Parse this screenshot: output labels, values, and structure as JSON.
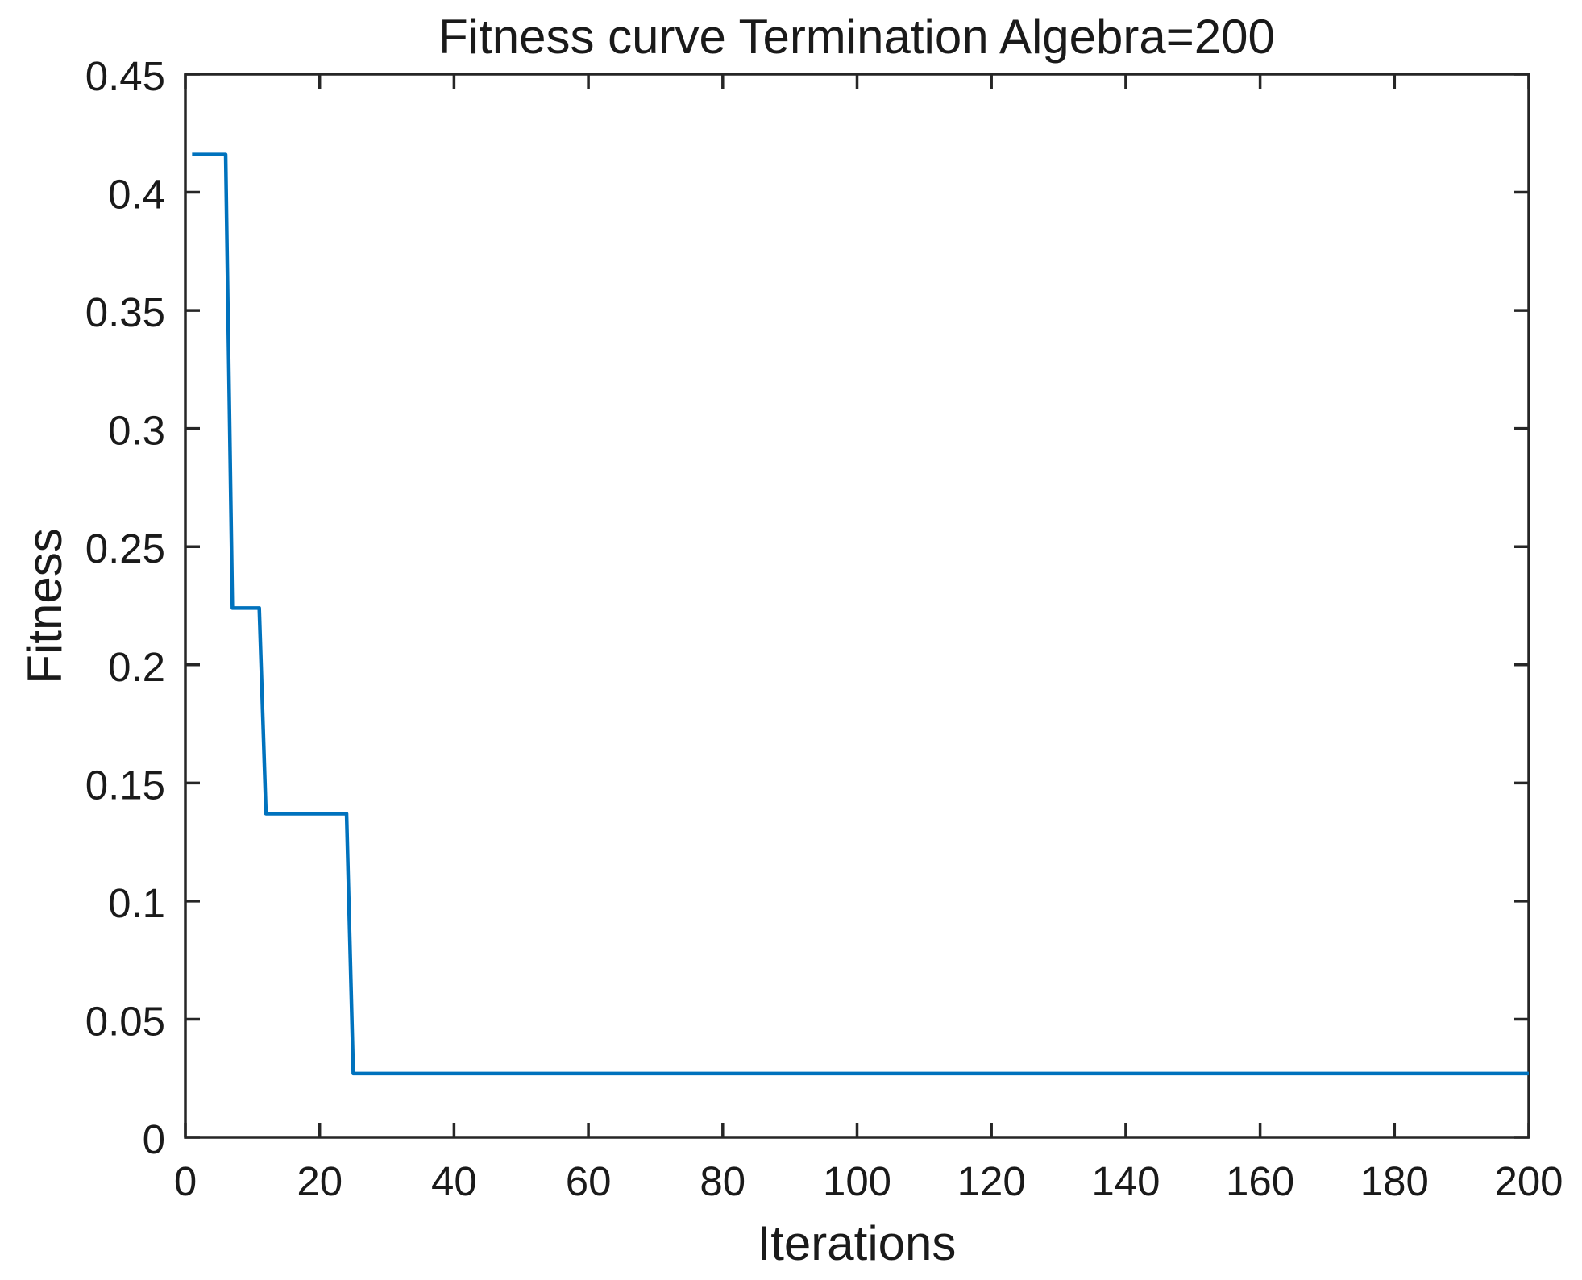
{
  "colors": {
    "line": "#0072BD",
    "axis": "#262626",
    "text": "#1a1a1a",
    "background": "#ffffff"
  },
  "chart_data": {
    "type": "line",
    "title": "Fitness curve Termination Algebra=200",
    "xlabel": "Iterations",
    "ylabel": "Fitness",
    "xlim": [
      0,
      200
    ],
    "ylim": [
      0,
      0.45
    ],
    "xtick_values": [
      0,
      20,
      40,
      60,
      80,
      100,
      120,
      140,
      160,
      180,
      200
    ],
    "xtick_labels": [
      "0",
      "20",
      "40",
      "60",
      "80",
      "100",
      "120",
      "140",
      "160",
      "180",
      "200"
    ],
    "ytick_values": [
      0,
      0.05,
      0.1,
      0.15,
      0.2,
      0.25,
      0.3,
      0.35,
      0.4,
      0.45
    ],
    "ytick_labels": [
      "0",
      "0.05",
      "0.1",
      "0.15",
      "0.2",
      "0.25",
      "0.3",
      "0.35",
      "0.4",
      "0.45"
    ],
    "grid": false,
    "legend_position": "none",
    "box": true,
    "tick_direction": "in",
    "series": [
      {
        "name": "fitness",
        "color": "#0072BD",
        "x": [
          1,
          6,
          7,
          11,
          12,
          24,
          25,
          200
        ],
        "y": [
          0.416,
          0.416,
          0.224,
          0.224,
          0.137,
          0.137,
          0.027,
          0.027
        ]
      }
    ]
  }
}
